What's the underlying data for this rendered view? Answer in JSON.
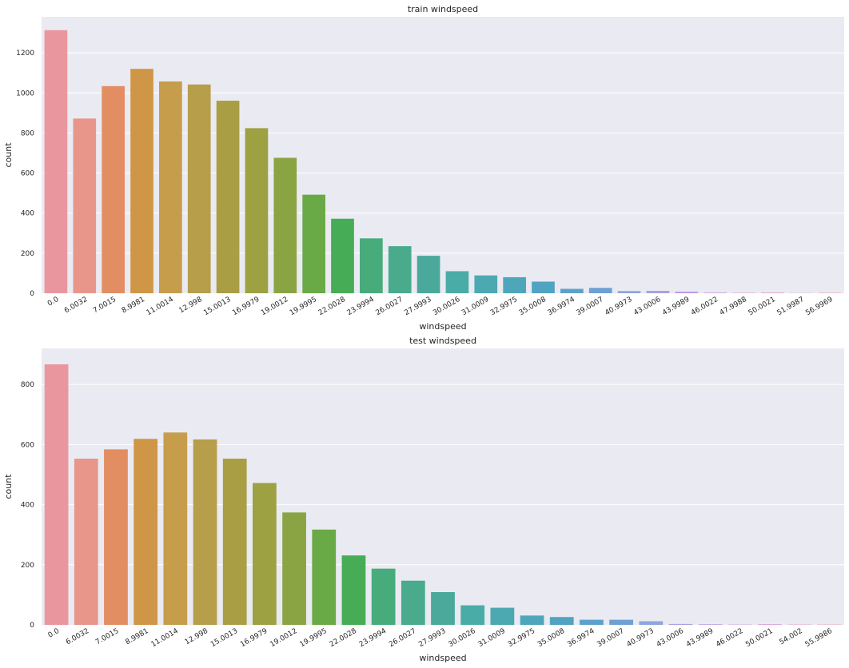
{
  "chart_data": [
    {
      "type": "bar",
      "title": "train windspeed",
      "xlabel": "windspeed",
      "ylabel": "count",
      "ylim": [
        0,
        1380
      ],
      "yticks": [
        0,
        200,
        400,
        600,
        800,
        1000,
        1200
      ],
      "grid": true,
      "categories": [
        "0.0",
        "6.0032",
        "7.0015",
        "8.9981",
        "11.0014",
        "12.998",
        "15.0013",
        "16.9979",
        "19.0012",
        "19.9995",
        "22.0028",
        "23.9994",
        "26.0027",
        "27.9993",
        "30.0026",
        "31.0009",
        "32.9975",
        "35.0008",
        "36.9974",
        "39.0007",
        "40.9973",
        "43.0006",
        "43.9989",
        "46.0022",
        "47.9988",
        "50.0021",
        "51.9987",
        "56.9969"
      ],
      "values": [
        1313,
        872,
        1034,
        1120,
        1057,
        1042,
        961,
        824,
        676,
        492,
        372,
        274,
        235,
        187,
        110,
        89,
        80,
        58,
        22,
        27,
        11,
        12,
        8,
        3,
        2,
        3,
        1,
        2
      ],
      "colors": [
        "#ea969e",
        "#e8968a",
        "#e38e62",
        "#cf9647",
        "#c69d4b",
        "#b69e4a",
        "#a99e43",
        "#9da141",
        "#8aa444",
        "#6aaa46",
        "#46ac56",
        "#47ab7c",
        "#49ab8c",
        "#4aa99a",
        "#4aaca7",
        "#4ca8b1",
        "#4ea6bb",
        "#50a3c1",
        "#5ba2cb",
        "#6da1d4",
        "#8fa5dc",
        "#a7a1e3",
        "#bb99e3",
        "#cc98dd",
        "#d894d1",
        "#e394c4",
        "#ea92b4",
        "#ec94a6"
      ]
    },
    {
      "type": "bar",
      "title": "test windspeed",
      "xlabel": "windspeed",
      "ylabel": "count",
      "ylim": [
        0,
        920
      ],
      "yticks": [
        0,
        200,
        400,
        600,
        800
      ],
      "grid": true,
      "categories": [
        "0.0",
        "6.0032",
        "7.0015",
        "8.9981",
        "11.0014",
        "12.998",
        "15.0013",
        "16.9979",
        "19.0012",
        "19.9995",
        "22.0028",
        "23.9994",
        "26.0027",
        "27.9993",
        "30.0026",
        "31.0009",
        "32.9975",
        "35.0008",
        "36.9974",
        "39.0007",
        "40.9973",
        "43.0006",
        "43.9989",
        "46.0022",
        "50.0021",
        "54.002",
        "55.9986"
      ],
      "values": [
        867,
        553,
        584,
        619,
        640,
        617,
        553,
        472,
        374,
        317,
        231,
        187,
        147,
        109,
        65,
        57,
        31,
        26,
        17,
        17,
        12,
        3,
        2,
        1,
        2,
        1,
        1
      ],
      "colors": [
        "#ea969e",
        "#e8968a",
        "#e38e62",
        "#cf9647",
        "#c69d4b",
        "#b69e4a",
        "#a99e43",
        "#9da141",
        "#8aa444",
        "#6aaa46",
        "#46ac56",
        "#47ab7c",
        "#49ab8c",
        "#4aa99a",
        "#4aaca7",
        "#4ca8b1",
        "#4ea6bb",
        "#50a3c1",
        "#5ba2cb",
        "#6da1d4",
        "#8fa5dc",
        "#a7a1e3",
        "#bb99e3",
        "#cc98dd",
        "#d894d1",
        "#e394c4",
        "#ea92b4"
      ]
    }
  ]
}
